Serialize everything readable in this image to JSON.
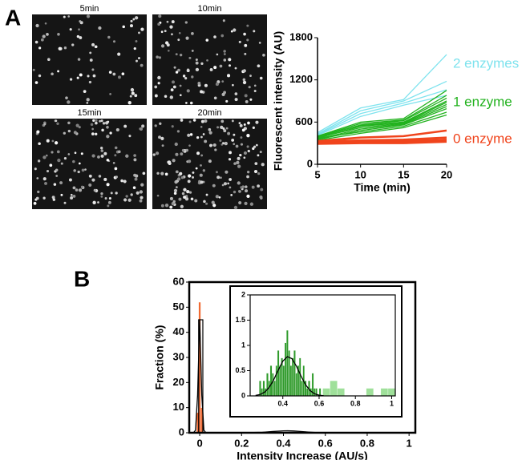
{
  "panel_labels": [
    "A",
    "B"
  ],
  "images": [
    {
      "label": "5min"
    },
    {
      "label": "10min"
    },
    {
      "label": "15min"
    },
    {
      "label": "20min"
    }
  ],
  "chart_data": [
    {
      "type": "line",
      "x": [
        5,
        10,
        15,
        20
      ],
      "xlabel": "Time (min)",
      "ylabel": "Fluorescent intensity (AU)",
      "xlim": [
        5,
        20
      ],
      "xticks": [
        5,
        10,
        15,
        20
      ],
      "ylim": [
        0,
        1800
      ],
      "yticks": [
        0,
        600,
        1200,
        1800
      ],
      "series": [
        {
          "name": "2 enzymes",
          "color": "#7fe3ee",
          "lines": [
            [
              450,
              800,
              920,
              1560
            ],
            [
              430,
              760,
              900,
              1180
            ],
            [
              420,
              720,
              870,
              1060
            ],
            [
              410,
              680,
              840,
              980
            ]
          ]
        },
        {
          "name": "1 enzyme",
          "color": "#22b21e",
          "lines": [
            [
              400,
              600,
              650,
              1050
            ],
            [
              390,
              580,
              630,
              980
            ],
            [
              380,
              560,
              620,
              940
            ],
            [
              400,
              550,
              600,
              900
            ],
            [
              370,
              540,
              590,
              880
            ],
            [
              380,
              520,
              580,
              850
            ],
            [
              360,
              500,
              570,
              820
            ],
            [
              350,
              480,
              560,
              790
            ],
            [
              370,
              460,
              540,
              740
            ],
            [
              340,
              440,
              520,
              700
            ]
          ]
        },
        {
          "name": "0 enzyme",
          "color": "#f0441c",
          "lines": [
            [
              330,
              380,
              400,
              480
            ],
            [
              320,
              340,
              350,
              380
            ],
            [
              310,
              320,
              330,
              350
            ],
            [
              300,
              310,
              320,
              340
            ],
            [
              290,
              300,
              300,
              320
            ]
          ]
        }
      ]
    },
    {
      "type": "histogram",
      "xlabel": "Intensity Increase (AU/s)",
      "ylabel": "Fraction (%)",
      "xlim": [
        -0.05,
        1.03
      ],
      "xticks": [
        0,
        0.2,
        0.4,
        0.6,
        0.8,
        1
      ],
      "ylim": [
        0,
        60
      ],
      "yticks": [
        0,
        10,
        20,
        30,
        40,
        50,
        60
      ],
      "series": [
        {
          "color": "#f06a33",
          "style": "filled",
          "bins": [
            -0.015,
            -0.005,
            0.005,
            0.015
          ],
          "values": [
            8,
            52,
            10
          ]
        },
        {
          "color": "#000000",
          "style": "outline",
          "bins": [
            -0.005,
            0.015
          ],
          "values": [
            45
          ]
        }
      ],
      "fit": {
        "color": "#000000",
        "x": [
          -0.03,
          -0.02,
          -0.01,
          0,
          0.01,
          0.02,
          0.03,
          0.05,
          0.1,
          0.2,
          0.3,
          0.35,
          0.4,
          0.42,
          0.45,
          0.5,
          0.55,
          0.6,
          0.7,
          0.8,
          1
        ],
        "y": [
          0,
          1,
          15,
          45,
          15,
          1,
          0,
          0,
          0,
          0,
          0.2,
          0.5,
          0.75,
          0.78,
          0.7,
          0.4,
          0.1,
          0,
          0,
          0,
          0
        ]
      }
    },
    {
      "type": "histogram",
      "xlim": [
        0.22,
        1.02
      ],
      "xticks": [
        0.4,
        0.6,
        0.8,
        1
      ],
      "ylim": [
        0,
        2
      ],
      "yticks": [
        0,
        0.5,
        1,
        1.5,
        2
      ],
      "series": [
        {
          "color": "#2e9a2a",
          "style": "filled",
          "bins": [
            0.27,
            0.28,
            0.29,
            0.3,
            0.31,
            0.32,
            0.33,
            0.34,
            0.35,
            0.36,
            0.37,
            0.38,
            0.39,
            0.4,
            0.41,
            0.42,
            0.43,
            0.44,
            0.45,
            0.46,
            0.47,
            0.48,
            0.49,
            0.5,
            0.51,
            0.52,
            0.53,
            0.54,
            0.55,
            0.56,
            0.57,
            0.58,
            0.59,
            0.6,
            0.61
          ],
          "values": [
            0.3,
            0.15,
            0.3,
            0.15,
            0.45,
            0.3,
            0.6,
            0.45,
            0.3,
            0.6,
            0.9,
            0.6,
            0.75,
            0.6,
            1.05,
            1.3,
            0.9,
            0.6,
            0.75,
            0.9,
            0.45,
            0.6,
            0.75,
            0.3,
            0.6,
            0.3,
            0.15,
            0.3,
            0.15,
            0.45,
            0.15,
            0.15,
            0,
            0.15
          ]
        },
        {
          "color": "#9fe09a",
          "style": "filled",
          "bins": [
            0.62,
            0.66,
            0.7,
            0.74,
            0.78,
            0.82,
            0.86,
            0.9,
            0.94,
            0.98,
            1.02
          ],
          "values": [
            0.15,
            0.3,
            0.15,
            0,
            0,
            0,
            0.15,
            0,
            0.15,
            0.15
          ]
        }
      ],
      "fit": {
        "color": "#000000",
        "x": [
          0.25,
          0.275,
          0.3,
          0.325,
          0.35,
          0.375,
          0.4,
          0.425,
          0.45,
          0.475,
          0.5,
          0.525,
          0.55,
          0.575,
          0.6,
          0.625
        ],
        "y": [
          0.009,
          0.028,
          0.074,
          0.169,
          0.321,
          0.513,
          0.688,
          0.778,
          0.738,
          0.589,
          0.395,
          0.223,
          0.106,
          0.042,
          0.014,
          0.004
        ]
      }
    }
  ]
}
